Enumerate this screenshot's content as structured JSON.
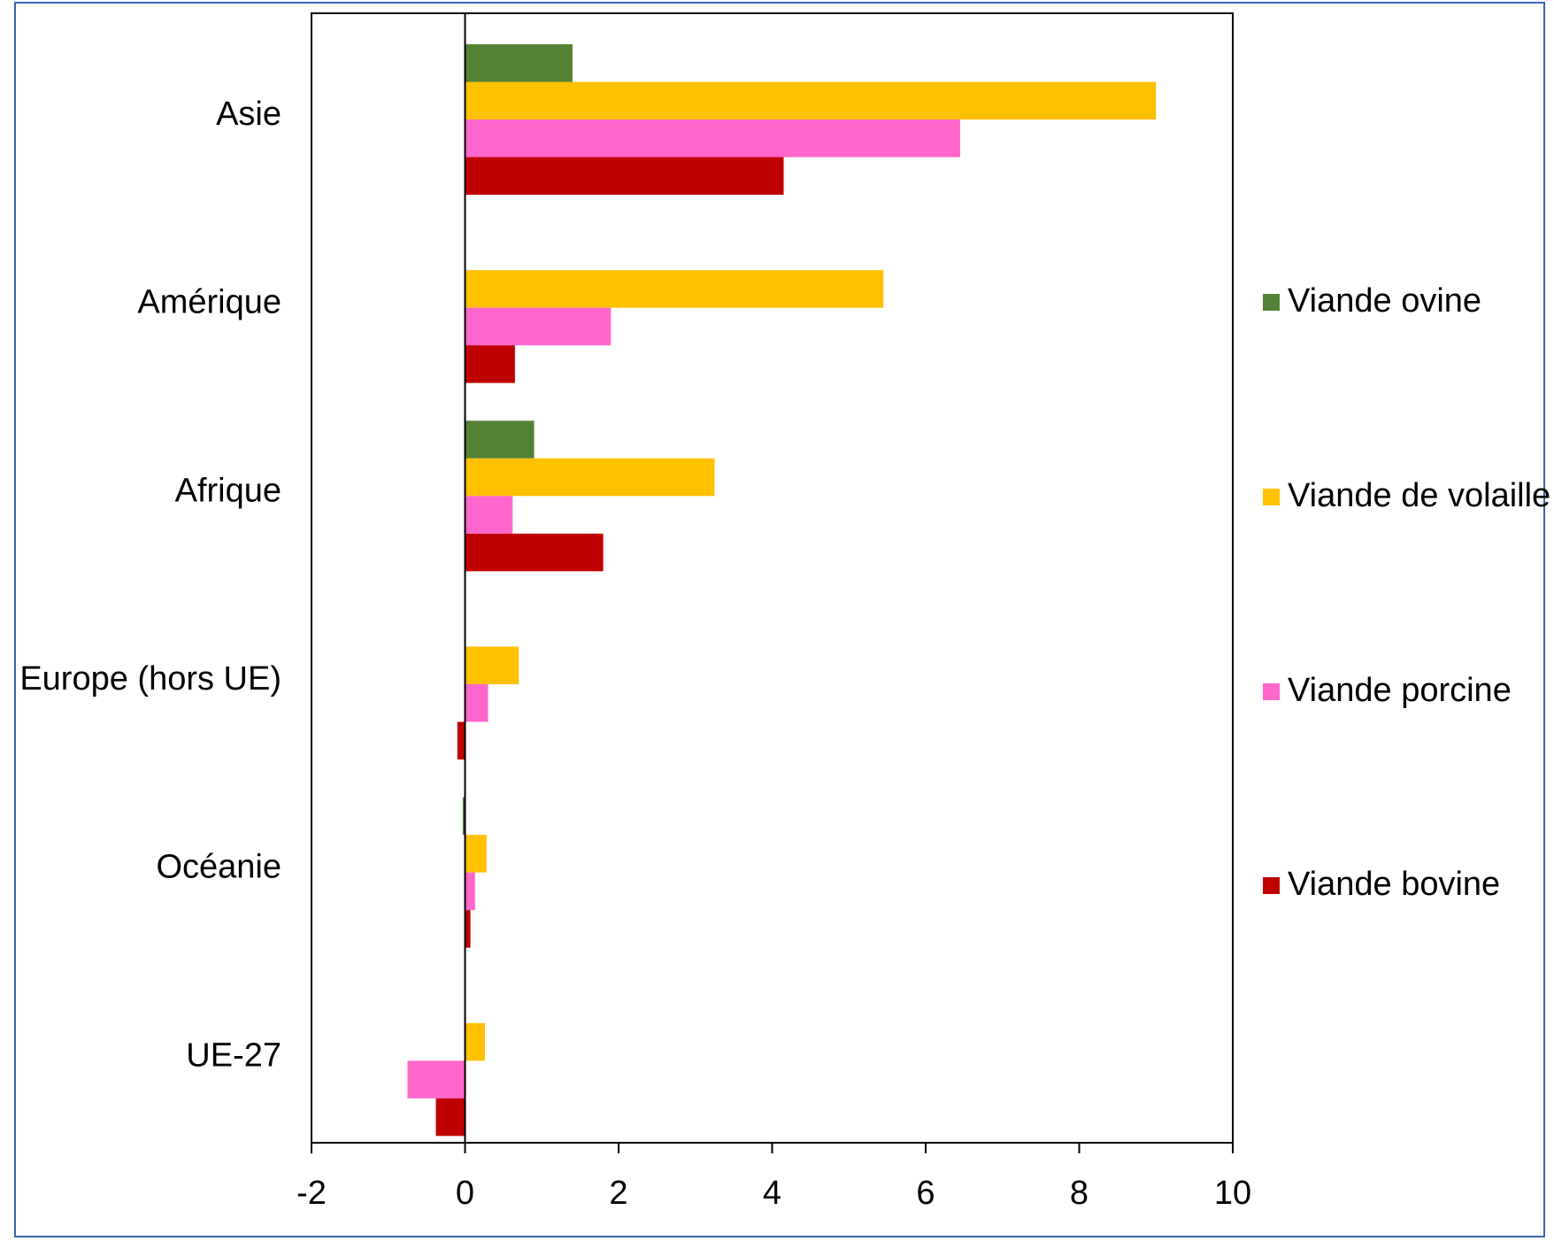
{
  "chart_data": {
    "type": "bar",
    "orientation": "horizontal",
    "categories": [
      "Asie",
      "Amérique",
      "Afrique",
      "Europe (hors UE)",
      "Océanie",
      "UE-27"
    ],
    "series": [
      {
        "name": "Viande ovine",
        "color": "#548235",
        "values": [
          1.4,
          0.0,
          0.9,
          0.0,
          -0.03,
          0.0
        ]
      },
      {
        "name": "Viande de volaille",
        "color": "#ffc000",
        "values": [
          9.0,
          5.45,
          3.25,
          0.7,
          0.28,
          0.26
        ]
      },
      {
        "name": "Viande porcine",
        "color": "#ff66cc",
        "values": [
          6.45,
          1.9,
          0.62,
          0.3,
          0.13,
          -0.75
        ]
      },
      {
        "name": "Viande bovine",
        "color": "#c00000",
        "values": [
          4.15,
          0.65,
          1.8,
          -0.1,
          0.07,
          -0.38
        ]
      }
    ],
    "xlim": [
      -2,
      10
    ],
    "xticks": [
      "-2",
      "0",
      "2",
      "4",
      "6",
      "8",
      "10"
    ],
    "legend_position": "right",
    "legend_order": [
      "Viande ovine",
      "Viande de volaille",
      "Viande porcine",
      "Viande bovine"
    ],
    "grid": false
  }
}
